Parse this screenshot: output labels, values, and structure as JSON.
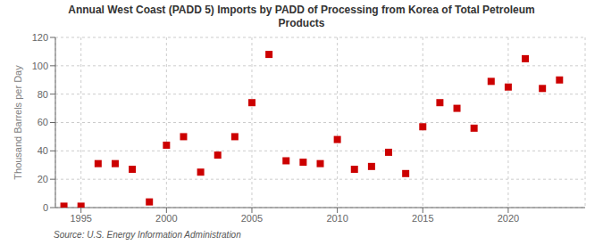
{
  "chart_data": {
    "type": "scatter",
    "title": "Annual West Coast (PADD 5) Imports by PADD of Processing from Korea of Total Petroleum\nProducts",
    "ylabel": "Thousand Barrels per Day",
    "annotations": [
      "Source: U.S. Energy Information Administration"
    ],
    "x": [
      1994,
      1995,
      1996,
      1997,
      1998,
      1999,
      2000,
      2001,
      2002,
      2003,
      2004,
      2005,
      2006,
      2007,
      2008,
      2009,
      2010,
      2011,
      2012,
      2013,
      2014,
      2015,
      2016,
      2017,
      2018,
      2019,
      2020,
      2021,
      2022,
      2023
    ],
    "values": [
      1,
      1,
      31,
      31,
      27,
      4,
      44,
      50,
      25,
      37,
      50,
      74,
      108,
      33,
      32,
      31,
      48,
      27,
      29,
      39,
      24,
      57,
      74,
      70,
      56,
      89,
      85,
      105,
      84,
      90
    ],
    "color": "#cc0000",
    "marker": "square",
    "xlim": [
      1993.5,
      2024.5
    ],
    "xticks": [
      1995,
      2000,
      2005,
      2010,
      2015,
      2020
    ],
    "ylim": [
      0,
      120
    ],
    "yticks": [
      0,
      20,
      40,
      60,
      80,
      100,
      120
    ],
    "grid": true
  }
}
